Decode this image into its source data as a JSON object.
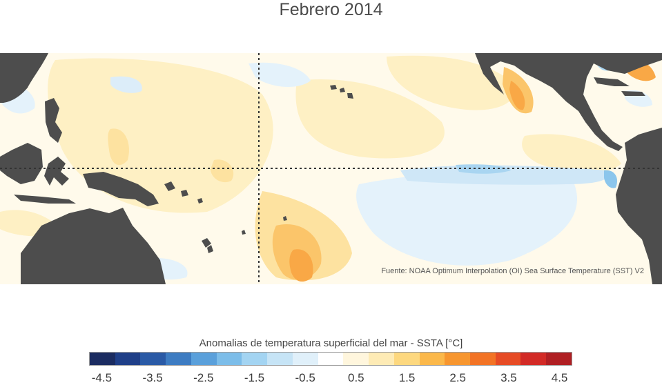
{
  "title": "Febrero 2014",
  "source_note": "Fuente: NOAA Optimum Interpolation (OI) Sea Surface Temperature (SST) V2",
  "legend": {
    "title": "Anomalias de temperatura superficial del mar - SSTA  [°C]",
    "tick_labels": [
      "-4.5",
      "-3.5",
      "-2.5",
      "-1.5",
      "-0.5",
      "0.5",
      "1.5",
      "2.5",
      "3.5",
      "4.5"
    ],
    "bins": [
      {
        "color": "#1b2c61"
      },
      {
        "color": "#1f3f88"
      },
      {
        "color": "#2a5aa6"
      },
      {
        "color": "#3d7cc2"
      },
      {
        "color": "#5aa0db"
      },
      {
        "color": "#7cbde9"
      },
      {
        "color": "#a3d4f2"
      },
      {
        "color": "#c6e4f6"
      },
      {
        "color": "#e0f0fa"
      },
      {
        "color": "#ffffff"
      },
      {
        "color": "#fff6dd"
      },
      {
        "color": "#feebb5"
      },
      {
        "color": "#fdd87f"
      },
      {
        "color": "#fbb84a"
      },
      {
        "color": "#f7962f"
      },
      {
        "color": "#f27325"
      },
      {
        "color": "#e64b25"
      },
      {
        "color": "#d22a26"
      },
      {
        "color": "#b01f23"
      }
    ]
  },
  "map": {
    "land_color": "#4d4d4d",
    "reference_lines": [
      "equator",
      "dateline"
    ]
  }
}
